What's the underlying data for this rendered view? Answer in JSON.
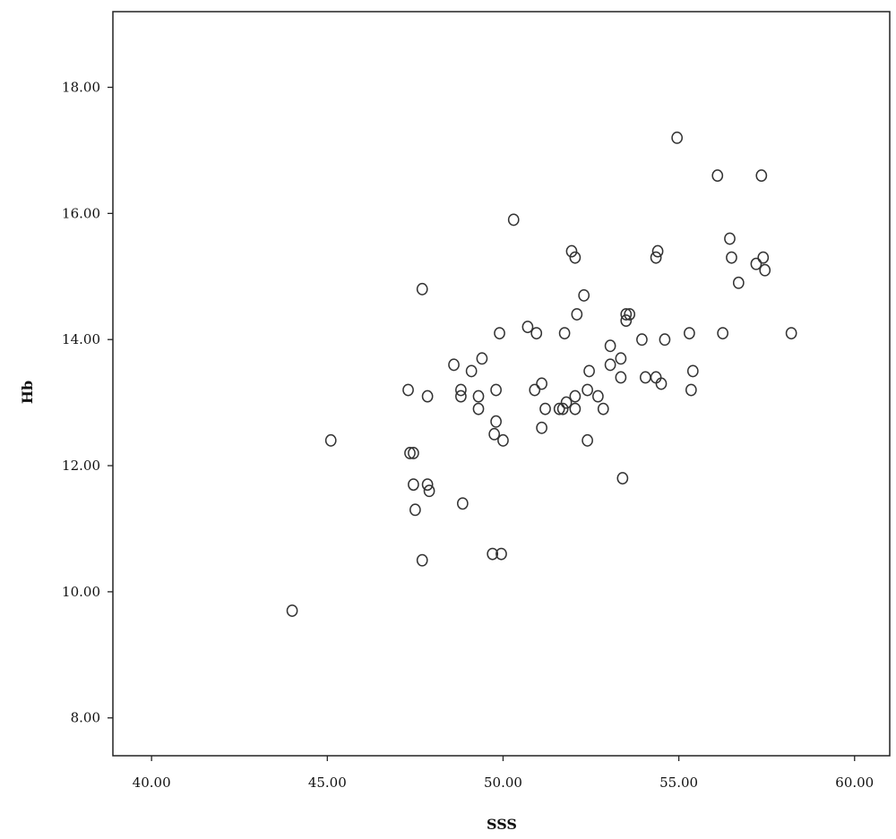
{
  "chart_data": {
    "type": "scatter",
    "title": "",
    "xlabel": "SSS",
    "ylabel": "Hb",
    "xlim": [
      38.9,
      61.0
    ],
    "ylim": [
      7.4,
      19.2
    ],
    "xticks": [
      40,
      45,
      50,
      55,
      60
    ],
    "yticks": [
      8,
      10,
      12,
      14,
      16,
      18
    ],
    "xtick_labels": [
      "40.00",
      "45.00",
      "50.00",
      "55.00",
      "60.00"
    ],
    "ytick_labels": [
      "8.00",
      "10.00",
      "12.00",
      "14.00",
      "16.00",
      "18.00"
    ],
    "grid": false,
    "marker": "open-circle",
    "point_color": "#333333",
    "points": [
      [
        44.0,
        9.7
      ],
      [
        45.1,
        12.4
      ],
      [
        47.3,
        13.2
      ],
      [
        47.35,
        12.2
      ],
      [
        47.45,
        12.2
      ],
      [
        47.45,
        11.7
      ],
      [
        47.5,
        11.3
      ],
      [
        47.7,
        14.8
      ],
      [
        47.7,
        10.5
      ],
      [
        47.85,
        13.1
      ],
      [
        47.85,
        11.7
      ],
      [
        47.9,
        11.6
      ],
      [
        48.6,
        13.6
      ],
      [
        48.8,
        13.2
      ],
      [
        48.8,
        13.1
      ],
      [
        48.85,
        11.4
      ],
      [
        49.1,
        13.5
      ],
      [
        49.3,
        13.1
      ],
      [
        49.3,
        12.9
      ],
      [
        49.4,
        13.7
      ],
      [
        49.7,
        10.6
      ],
      [
        49.75,
        12.5
      ],
      [
        49.8,
        13.2
      ],
      [
        49.8,
        12.7
      ],
      [
        49.9,
        14.1
      ],
      [
        50.0,
        12.4
      ],
      [
        49.95,
        10.6
      ],
      [
        50.3,
        15.9
      ],
      [
        50.7,
        14.2
      ],
      [
        50.9,
        13.2
      ],
      [
        50.95,
        14.1
      ],
      [
        51.1,
        13.3
      ],
      [
        51.1,
        12.6
      ],
      [
        51.2,
        12.9
      ],
      [
        51.6,
        12.9
      ],
      [
        51.7,
        12.9
      ],
      [
        51.75,
        14.1
      ],
      [
        51.8,
        13.0
      ],
      [
        51.95,
        15.4
      ],
      [
        52.05,
        15.3
      ],
      [
        52.05,
        13.1
      ],
      [
        52.05,
        12.9
      ],
      [
        52.1,
        14.4
      ],
      [
        52.3,
        14.7
      ],
      [
        52.4,
        13.2
      ],
      [
        52.4,
        12.4
      ],
      [
        52.45,
        13.5
      ],
      [
        52.7,
        13.1
      ],
      [
        52.85,
        12.9
      ],
      [
        53.05,
        13.9
      ],
      [
        53.05,
        13.6
      ],
      [
        53.35,
        13.7
      ],
      [
        53.35,
        13.4
      ],
      [
        53.4,
        11.8
      ],
      [
        53.5,
        14.4
      ],
      [
        53.5,
        14.3
      ],
      [
        53.6,
        14.4
      ],
      [
        53.95,
        14.0
      ],
      [
        54.05,
        13.4
      ],
      [
        54.35,
        13.4
      ],
      [
        54.35,
        15.3
      ],
      [
        54.4,
        15.4
      ],
      [
        54.5,
        13.3
      ],
      [
        54.6,
        14.0
      ],
      [
        54.95,
        17.2
      ],
      [
        55.3,
        14.1
      ],
      [
        55.35,
        13.2
      ],
      [
        55.4,
        13.5
      ],
      [
        56.1,
        16.6
      ],
      [
        56.25,
        14.1
      ],
      [
        56.45,
        15.6
      ],
      [
        56.5,
        15.3
      ],
      [
        56.7,
        14.9
      ],
      [
        57.2,
        15.2
      ],
      [
        57.35,
        16.6
      ],
      [
        57.4,
        15.3
      ],
      [
        57.45,
        15.1
      ],
      [
        58.2,
        14.1
      ]
    ]
  }
}
